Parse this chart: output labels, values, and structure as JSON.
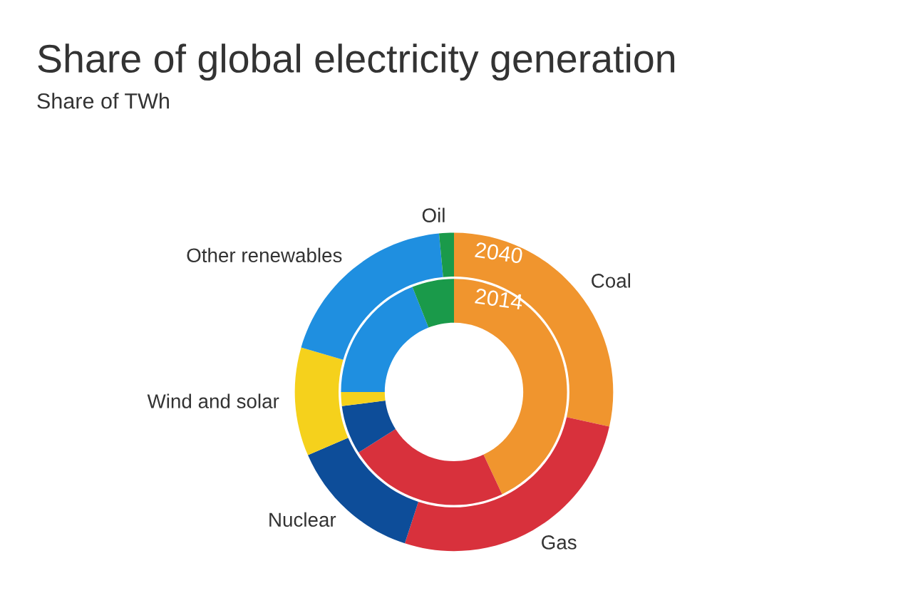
{
  "chart_data": {
    "type": "donut",
    "title": "Share of global electricity generation",
    "subtitle": "Share of TWh",
    "categories": [
      "Coal",
      "Gas",
      "Nuclear",
      "Wind and solar",
      "Other renewables",
      "Oil"
    ],
    "colors": [
      "#f0952e",
      "#d8313c",
      "#0d4d99",
      "#f5d11c",
      "#1f8fe0",
      "#1a9a4a"
    ],
    "series": [
      {
        "name": "2040",
        "values": [
          28.5,
          26.5,
          13.5,
          11,
          19,
          1.5
        ]
      },
      {
        "name": "2014",
        "values": [
          43,
          23,
          7,
          2,
          19,
          6
        ]
      }
    ],
    "legend": false
  }
}
